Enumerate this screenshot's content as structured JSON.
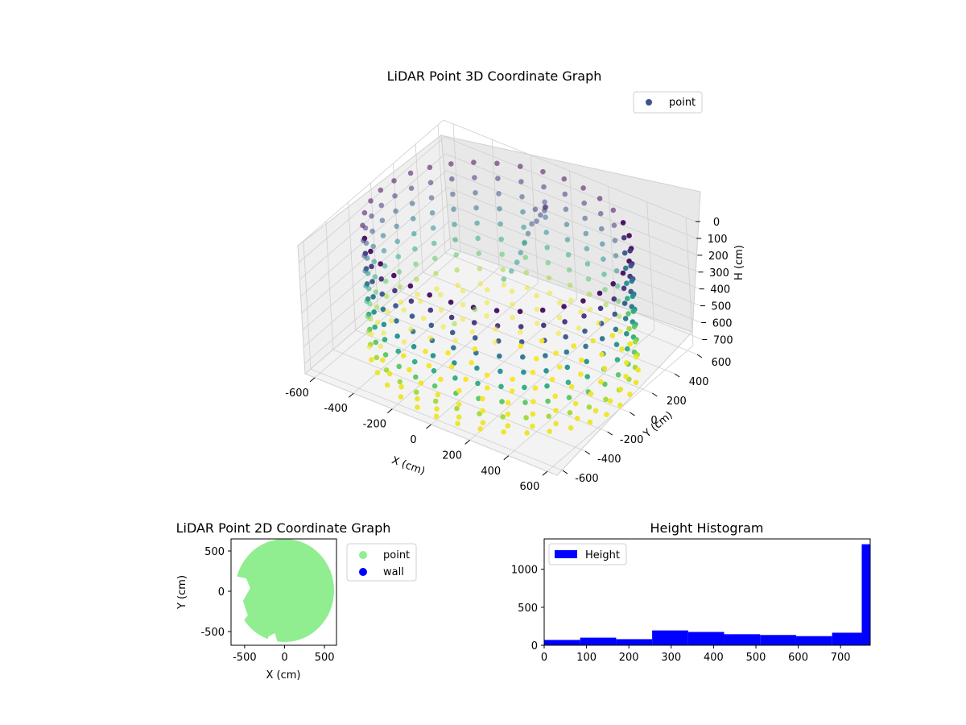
{
  "figure": {
    "title_3d": "LiDAR Point 3D Coordinate Graph",
    "title_2d": "LiDAR Point 2D Coordinate Graph",
    "title_hist": "Height Histogram"
  },
  "chart_data": [
    {
      "type": "scatter",
      "title": "LiDAR Point 3D Coordinate Graph",
      "xlabel": "X (cm)",
      "ylabel": "Y (cm)",
      "zlabel": "H (cm)",
      "xlim": [
        -650,
        650
      ],
      "ylim": [
        -650,
        650
      ],
      "zlim": [
        0,
        760
      ],
      "z_inverted": true,
      "x_ticks": [
        -600,
        -400,
        -200,
        0,
        200,
        400,
        600
      ],
      "y_ticks": [
        -600,
        -400,
        -200,
        0,
        200,
        400,
        600
      ],
      "z_ticks": [
        0,
        100,
        200,
        300,
        400,
        500,
        600,
        700
      ],
      "colormap": "viridis",
      "legend": {
        "labels": [
          "point"
        ],
        "placement": "top-right"
      },
      "series": [
        {
          "name": "point",
          "description_points": "cylindrical wall of points at radius ~600 cm, heights 0–760 cm in 100 cm rings, plus a floor disk at H≈760 and a cluster near X≈0,Y≈400",
          "wall_radius": 600,
          "wall_angles_deg": [
            0,
            10,
            20,
            30,
            40,
            50,
            60,
            70,
            80,
            90,
            100,
            110,
            120,
            130,
            140,
            150,
            160,
            170,
            180,
            190,
            200,
            210,
            220,
            230,
            240,
            250,
            260,
            270,
            280,
            290,
            300,
            310,
            320,
            330,
            340,
            350
          ],
          "wall_heights": [
            20,
            110,
            200,
            290,
            380,
            470,
            560,
            650,
            740
          ],
          "floor_height": 760,
          "floor_radii": [
            150,
            250,
            350,
            450,
            550
          ],
          "cluster": [
            [
              -50,
              420,
              120
            ],
            [
              -30,
              430,
              150
            ],
            [
              -10,
              440,
              100
            ],
            [
              -60,
              400,
              200
            ],
            [
              -40,
              410,
              180
            ],
            [
              -20,
              450,
              130
            ],
            [
              -70,
              380,
              250
            ],
            [
              0,
              430,
              90
            ],
            [
              -80,
              360,
              300
            ],
            [
              -90,
              340,
              350
            ],
            [
              -100,
              320,
              400
            ],
            [
              -120,
              300,
              450
            ],
            [
              -150,
              280,
              500
            ],
            [
              -200,
              100,
              600
            ],
            [
              -250,
              0,
              650
            ]
          ]
        }
      ]
    },
    {
      "type": "scatter",
      "title": "LiDAR Point 2D Coordinate Graph",
      "xlabel": "X (cm)",
      "ylabel": "Y (cm)",
      "xlim": [
        -670,
        650
      ],
      "ylim": [
        -670,
        650
      ],
      "x_ticks": [
        -500,
        0,
        500
      ],
      "y_ticks": [
        -500,
        0,
        500
      ],
      "legend": {
        "labels": [
          "point",
          "wall"
        ],
        "placement": "outside-right"
      },
      "series": [
        {
          "name": "point",
          "color": "#90ee90",
          "shape": "filled disk of radius ~620 cm centered near (0,0) with a gap on the left side"
        },
        {
          "name": "wall",
          "color": "#0000ff"
        }
      ]
    },
    {
      "type": "bar",
      "title": "Height Histogram",
      "xlim": [
        0,
        770
      ],
      "ylim": [
        0,
        1400
      ],
      "x_ticks": [
        0,
        100,
        200,
        300,
        400,
        500,
        600,
        700
      ],
      "y_ticks": [
        0,
        500,
        1000
      ],
      "legend": {
        "labels": [
          "Height"
        ],
        "placement": "top-left"
      },
      "color": "#0000ff",
      "bins": [
        {
          "from": 0,
          "to": 85,
          "count": 70
        },
        {
          "from": 85,
          "to": 170,
          "count": 100
        },
        {
          "from": 170,
          "to": 255,
          "count": 80
        },
        {
          "from": 255,
          "to": 340,
          "count": 195
        },
        {
          "from": 340,
          "to": 425,
          "count": 175
        },
        {
          "from": 425,
          "to": 510,
          "count": 145
        },
        {
          "from": 510,
          "to": 595,
          "count": 135
        },
        {
          "from": 595,
          "to": 680,
          "count": 120
        },
        {
          "from": 680,
          "to": 750,
          "count": 165
        },
        {
          "from": 750,
          "to": 770,
          "count": 1330
        }
      ]
    }
  ]
}
